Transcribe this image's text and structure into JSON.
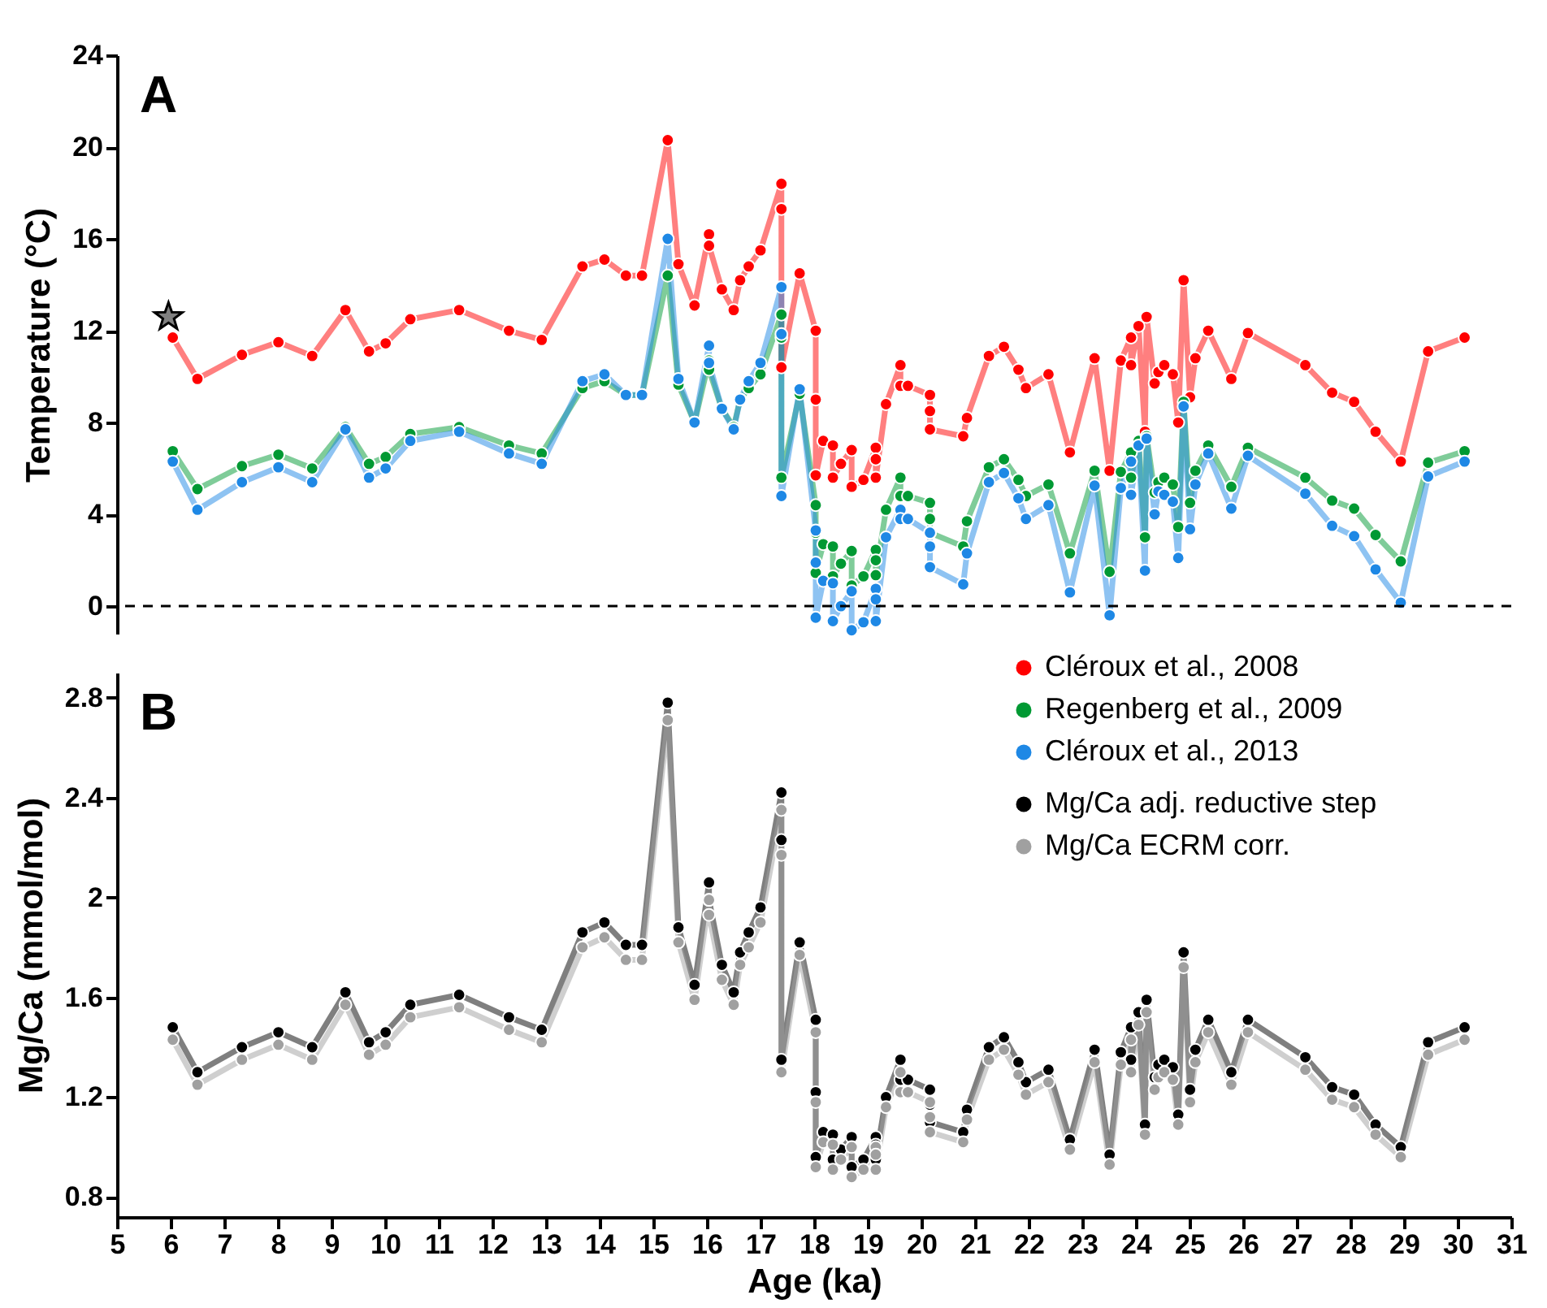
{
  "chart_data": [
    {
      "type": "line",
      "title": "A",
      "ylabel": "Temperature (°C)",
      "xlim": [
        5,
        31
      ],
      "ylim": [
        -1.2,
        24
      ],
      "yticks": [
        0,
        4,
        8,
        12,
        16,
        20,
        24
      ],
      "tick_labels": "y",
      "legend": "bottom right",
      "marker": "circle",
      "line_style": "solid",
      "x": [
        6.04,
        6.5,
        7.33,
        8.01,
        8.64,
        9.26,
        9.7,
        10.01,
        10.47,
        11.38,
        12.31,
        12.92,
        13.68,
        14.09,
        14.49,
        14.79,
        15.27,
        15.47,
        15.77,
        16.04,
        16.04,
        16.28,
        16.5,
        16.62,
        16.78,
        17.0,
        17.39,
        17.39,
        17.39,
        17.73,
        18.03,
        18.03,
        18.03,
        18.17,
        18.35,
        18.35,
        18.5,
        18.7,
        18.7,
        18.92,
        19.15,
        19.15,
        19.15,
        19.34,
        19.61,
        19.61,
        19.75,
        20.16,
        20.16,
        20.16,
        20.78,
        20.85,
        21.26,
        21.54,
        21.81,
        21.95,
        22.37,
        22.77,
        23.23,
        23.51,
        23.72,
        23.91,
        23.91,
        24.05,
        24.17,
        24.2,
        24.35,
        24.42,
        24.53,
        24.69,
        24.79,
        24.89,
        25.01,
        25.11,
        25.35,
        25.78,
        26.09,
        27.16,
        27.66,
        28.07,
        28.47,
        28.94,
        29.45,
        30.13
      ],
      "series": [
        {
          "name": "Cléroux et al., 2008",
          "color": "#ff0000",
          "values": [
            11.7,
            9.9,
            10.95,
            11.5,
            10.9,
            12.9,
            11.1,
            11.45,
            12.5,
            12.9,
            12.0,
            11.6,
            14.8,
            15.1,
            14.4,
            14.4,
            20.3,
            14.9,
            13.1,
            16.2,
            15.7,
            13.8,
            12.9,
            14.2,
            14.8,
            15.5,
            18.4,
            17.3,
            10.4,
            14.5,
            12.0,
            9.0,
            5.7,
            7.2,
            7.0,
            5.6,
            6.2,
            6.8,
            5.2,
            5.5,
            6.9,
            6.4,
            5.6,
            8.8,
            10.5,
            9.6,
            9.6,
            9.2,
            8.5,
            7.7,
            7.4,
            8.2,
            10.9,
            11.3,
            10.3,
            9.5,
            10.1,
            6.7,
            10.8,
            5.9,
            10.7,
            11.7,
            10.5,
            12.2,
            7.6,
            12.6,
            9.7,
            10.2,
            10.5,
            10.1,
            8.0,
            14.2,
            9.1,
            10.8,
            12.0,
            9.9,
            11.9,
            10.5,
            9.3,
            8.9,
            7.6,
            6.3,
            11.1,
            11.7
          ]
        },
        {
          "name": "Regenberg et al., 2009",
          "color": "#009933",
          "values": [
            6.75,
            5.1,
            6.1,
            6.6,
            6.0,
            7.8,
            6.2,
            6.5,
            7.5,
            7.8,
            7.0,
            6.65,
            9.5,
            9.8,
            9.2,
            9.2,
            14.4,
            9.65,
            8.0,
            10.7,
            10.3,
            8.6,
            7.8,
            9.0,
            9.5,
            10.1,
            12.7,
            11.7,
            5.6,
            9.25,
            4.4,
            3.2,
            1.45,
            2.7,
            2.6,
            1.3,
            1.85,
            2.4,
            0.9,
            1.3,
            2.45,
            2.0,
            1.35,
            4.2,
            5.6,
            4.8,
            4.8,
            4.5,
            3.8,
            3.2,
            2.6,
            3.7,
            6.05,
            6.4,
            5.5,
            4.8,
            5.3,
            2.3,
            5.9,
            1.5,
            5.85,
            6.7,
            5.6,
            7.2,
            3.0,
            7.4,
            4.95,
            5.4,
            5.6,
            5.3,
            3.45,
            8.9,
            4.5,
            5.9,
            7.0,
            5.2,
            6.9,
            5.6,
            4.6,
            4.25,
            3.1,
            1.95,
            6.25,
            6.75
          ]
        },
        {
          "name": "Cléroux et al., 2013",
          "color": "#1e88e5",
          "values": [
            6.3,
            4.2,
            5.4,
            6.05,
            5.4,
            7.7,
            5.6,
            6.0,
            7.2,
            7.6,
            6.65,
            6.2,
            9.8,
            10.1,
            9.2,
            9.2,
            16.0,
            9.9,
            8.0,
            11.35,
            10.6,
            8.6,
            7.7,
            9.0,
            9.8,
            10.6,
            13.9,
            11.85,
            4.8,
            9.45,
            3.3,
            1.9,
            -0.5,
            1.1,
            1.0,
            -0.65,
            0.0,
            0.65,
            -1.05,
            -0.7,
            0.75,
            0.3,
            -0.65,
            3.0,
            4.2,
            3.8,
            3.8,
            3.2,
            2.6,
            1.7,
            0.95,
            2.3,
            5.4,
            5.8,
            4.7,
            3.8,
            4.4,
            0.6,
            5.25,
            -0.4,
            5.15,
            6.3,
            4.85,
            7.0,
            1.55,
            7.3,
            4.0,
            5.0,
            4.85,
            4.55,
            2.1,
            8.7,
            3.35,
            5.3,
            6.65,
            4.25,
            6.55,
            4.9,
            3.5,
            3.05,
            1.6,
            0.15,
            5.65,
            6.3
          ]
        },
        {
          "type": "scatter",
          "marker": "star",
          "color": "#808080",
          "x": [
            5.96
          ],
          "values": [
            12.6
          ]
        }
      ],
      "ref_lines": [
        {
          "axis": "y",
          "value": 0,
          "line_style": "dashed",
          "color": "#000000"
        }
      ]
    },
    {
      "type": "line",
      "title": "B",
      "xlabel": "Age (ka)",
      "ylabel": "Mg/Ca (mmol/mol)",
      "xlim": [
        5,
        31
      ],
      "xticks": [
        5,
        6,
        7,
        8,
        9,
        10,
        11,
        12,
        13,
        14,
        15,
        16,
        17,
        18,
        19,
        20,
        21,
        22,
        23,
        24,
        25,
        26,
        27,
        28,
        29,
        30,
        31
      ],
      "ylim": [
        0.72,
        2.9
      ],
      "yticks": [
        0.8,
        1.2,
        1.6,
        2,
        2.4,
        2.8
      ],
      "legend": "top right",
      "marker": "circle",
      "line_style": "solid",
      "x": [
        6.04,
        6.5,
        7.33,
        8.01,
        8.64,
        9.26,
        9.7,
        10.01,
        10.47,
        11.38,
        12.31,
        12.92,
        13.68,
        14.09,
        14.49,
        14.79,
        15.27,
        15.47,
        15.77,
        16.04,
        16.04,
        16.28,
        16.5,
        16.62,
        16.78,
        17.0,
        17.39,
        17.39,
        17.39,
        17.73,
        18.03,
        18.03,
        18.03,
        18.17,
        18.35,
        18.35,
        18.5,
        18.7,
        18.7,
        18.92,
        19.15,
        19.15,
        19.15,
        19.34,
        19.61,
        19.61,
        19.75,
        20.16,
        20.16,
        20.16,
        20.78,
        20.85,
        21.26,
        21.54,
        21.81,
        21.95,
        22.37,
        22.77,
        23.23,
        23.51,
        23.72,
        23.91,
        23.91,
        24.05,
        24.17,
        24.2,
        24.35,
        24.42,
        24.53,
        24.69,
        24.79,
        24.89,
        25.01,
        25.11,
        25.35,
        25.78,
        26.09,
        27.16,
        27.66,
        28.07,
        28.47,
        28.94,
        29.45,
        30.13
      ],
      "series": [
        {
          "name": "Mg/Ca adj. reductive step",
          "color": "#000000",
          "values": [
            1.48,
            1.3,
            1.4,
            1.46,
            1.4,
            1.62,
            1.42,
            1.46,
            1.57,
            1.61,
            1.52,
            1.47,
            1.86,
            1.9,
            1.81,
            1.81,
            2.78,
            1.88,
            1.65,
            2.06,
            1.99,
            1.73,
            1.62,
            1.78,
            1.86,
            1.96,
            2.42,
            2.23,
            1.35,
            1.82,
            1.51,
            1.22,
            0.96,
            1.06,
            1.05,
            0.95,
            0.99,
            1.04,
            0.92,
            0.95,
            1.04,
            1.01,
            0.95,
            1.2,
            1.35,
            1.27,
            1.27,
            1.23,
            1.17,
            1.1,
            1.06,
            1.15,
            1.4,
            1.44,
            1.34,
            1.26,
            1.31,
            1.03,
            1.39,
            0.97,
            1.38,
            1.48,
            1.35,
            1.54,
            1.09,
            1.59,
            1.28,
            1.33,
            1.35,
            1.32,
            1.13,
            1.78,
            1.23,
            1.39,
            1.51,
            1.3,
            1.51,
            1.36,
            1.24,
            1.21,
            1.09,
            1.0,
            1.42,
            1.48
          ]
        },
        {
          "name": "Mg/Ca ECRM corr.",
          "color": "#a0a0a0",
          "values": [
            1.43,
            1.25,
            1.35,
            1.41,
            1.35,
            1.57,
            1.37,
            1.41,
            1.52,
            1.56,
            1.47,
            1.42,
            1.8,
            1.84,
            1.75,
            1.75,
            2.71,
            1.82,
            1.59,
            1.99,
            1.93,
            1.67,
            1.57,
            1.73,
            1.8,
            1.9,
            2.35,
            2.17,
            1.3,
            1.77,
            1.46,
            1.18,
            0.92,
            1.02,
            1.01,
            0.91,
            0.95,
            1.0,
            0.88,
            0.91,
            1.0,
            0.97,
            0.91,
            1.16,
            1.3,
            1.22,
            1.22,
            1.18,
            1.12,
            1.06,
            1.02,
            1.11,
            1.35,
            1.39,
            1.29,
            1.21,
            1.26,
            0.99,
            1.34,
            0.93,
            1.33,
            1.43,
            1.3,
            1.49,
            1.05,
            1.54,
            1.23,
            1.28,
            1.3,
            1.27,
            1.09,
            1.72,
            1.18,
            1.34,
            1.46,
            1.25,
            1.46,
            1.31,
            1.19,
            1.16,
            1.05,
            0.96,
            1.37,
            1.43
          ]
        }
      ]
    }
  ]
}
